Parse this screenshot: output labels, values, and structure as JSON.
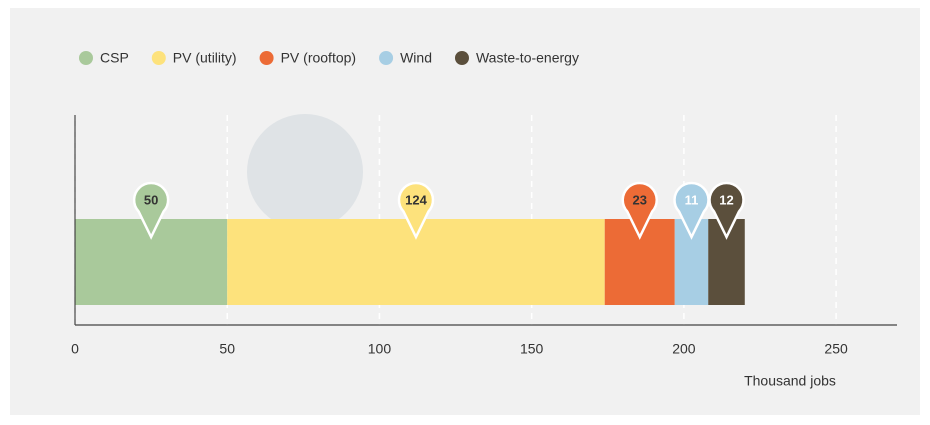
{
  "chart_data": {
    "type": "bar",
    "orientation": "horizontal",
    "stacked": true,
    "series": [
      {
        "name": "CSP",
        "color": "#a9c99b",
        "label_color": "#333333",
        "values": [
          50
        ]
      },
      {
        "name": "PV (utility)",
        "color": "#fde27c",
        "label_color": "#333333",
        "values": [
          124
        ]
      },
      {
        "name": "PV (rooftop)",
        "color": "#ec6b36",
        "label_color": "#333333",
        "values": [
          23
        ]
      },
      {
        "name": "Wind",
        "color": "#a7cee4",
        "label_color": "#ffffff",
        "values": [
          11
        ]
      },
      {
        "name": "Waste-to-energy",
        "color": "#5b4f3c",
        "label_color": "#ffffff",
        "values": [
          12
        ]
      }
    ],
    "xlabel": "Thousand jobs",
    "xlim": [
      0,
      270
    ],
    "xticks": [
      0,
      50,
      100,
      150,
      200,
      250
    ],
    "grid": true,
    "legend": "top-left"
  }
}
